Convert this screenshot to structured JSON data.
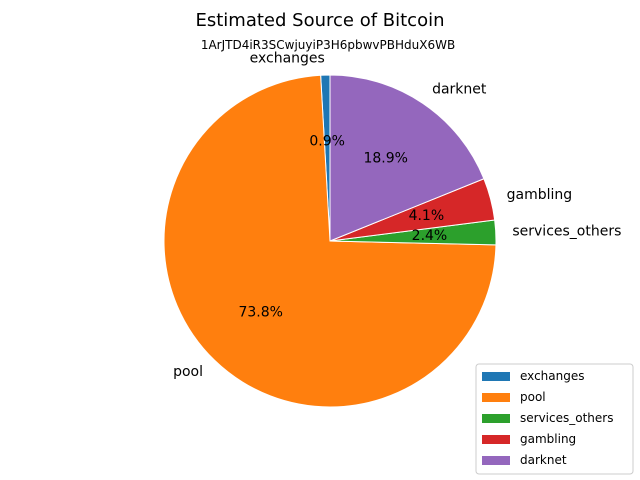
{
  "chart_data": {
    "type": "pie",
    "title": "Estimated Source of Bitcoin",
    "subtitle": "1ArJTD4iR3SCwjuyiP3H6pbwvPBHduX6WB",
    "legend_position": "lower-right",
    "slices": [
      {
        "label": "exchanges",
        "value": 0.9,
        "pct_label": "0.9%",
        "color": "#1f77b4"
      },
      {
        "label": "pool",
        "value": 73.8,
        "pct_label": "73.8%",
        "color": "#ff7f0e"
      },
      {
        "label": "services_others",
        "value": 2.4,
        "pct_label": "2.4%",
        "color": "#2ca02c"
      },
      {
        "label": "gambling",
        "value": 4.1,
        "pct_label": "4.1%",
        "color": "#d62728"
      },
      {
        "label": "darknet",
        "value": 18.9,
        "pct_label": "18.9%",
        "color": "#9467bd"
      }
    ]
  }
}
